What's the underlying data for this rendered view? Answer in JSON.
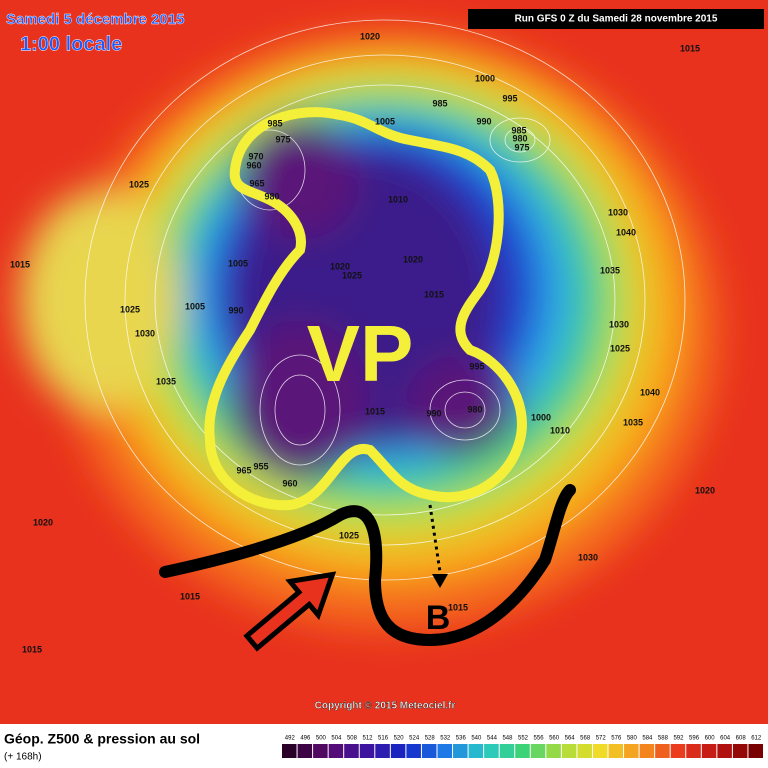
{
  "header": {
    "date": "Samedi 5 décembre 2015",
    "time": "1:00 locale",
    "run": "Run GFS 0 Z du Samedi 28 novembre 2015"
  },
  "annotations": {
    "vortex": "VP",
    "low": "B"
  },
  "pressure_labels": [
    "1020",
    "1015",
    "1000",
    "985",
    "995",
    "990",
    "985",
    "980",
    "975",
    "1005",
    "985",
    "975",
    "970",
    "960",
    "965",
    "980",
    "1025",
    "1010",
    "1030",
    "1040",
    "1015",
    "1005",
    "1020",
    "1025",
    "1020",
    "1015",
    "1035",
    "1025",
    "1005",
    "990",
    "1030",
    "1030",
    "1025",
    "1035",
    "995",
    "1015",
    "990",
    "980",
    "1000",
    "1010",
    "1035",
    "1040",
    "965",
    "955",
    "960",
    "1020",
    "1020",
    "1025",
    "1030",
    "1015",
    "1015",
    "1015"
  ],
  "copyright": "Copyright © 2015 Meteociel.fr",
  "legend": {
    "title": "Géop. Z500 & pression au sol",
    "subtitle": "(+ 168h)",
    "ticks": [
      "492",
      "496",
      "500",
      "504",
      "508",
      "512",
      "516",
      "520",
      "524",
      "528",
      "532",
      "536",
      "540",
      "544",
      "548",
      "552",
      "556",
      "560",
      "564",
      "568",
      "572",
      "576",
      "580",
      "584",
      "588",
      "592",
      "596",
      "600",
      "604",
      "608",
      "612"
    ]
  }
}
